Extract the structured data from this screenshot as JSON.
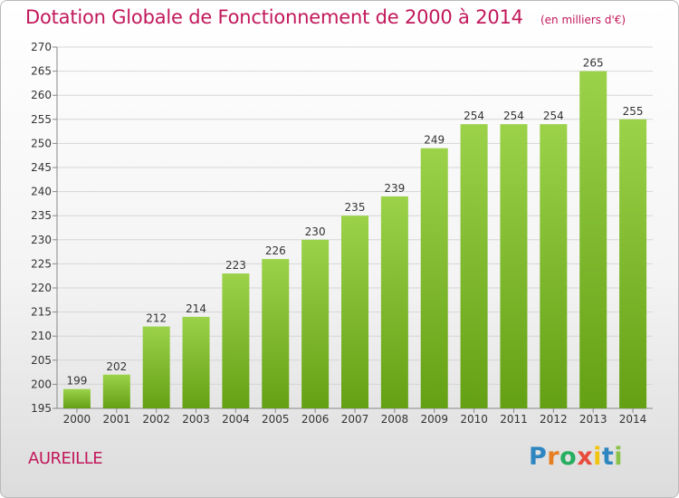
{
  "header": {
    "title": "Dotation Globale de Fonctionnement de 2000 à 2014",
    "unit": "(en milliers d'€)"
  },
  "commune": "AUREILLE",
  "brand": {
    "letters": [
      "P",
      "r",
      "o",
      "x",
      "i",
      "t",
      "i"
    ],
    "colors": [
      "#2e86c1",
      "#e67e22",
      "#27ae60",
      "#e74c3c",
      "#f1c40f",
      "#2e86c1",
      "#8bc34a"
    ]
  },
  "colors": {
    "bar_top": "#9bd249",
    "bar_bottom": "#64a014",
    "title": "#c2185b"
  },
  "chart_data": {
    "type": "bar",
    "title": "Dotation Globale de Fonctionnement de 2000 à 2014",
    "xlabel": "",
    "ylabel": "",
    "categories": [
      "2000",
      "2001",
      "2002",
      "2003",
      "2004",
      "2005",
      "2006",
      "2007",
      "2008",
      "2009",
      "2010",
      "2011",
      "2012",
      "2013",
      "2014"
    ],
    "values": [
      199,
      202,
      212,
      214,
      223,
      226,
      230,
      235,
      239,
      249,
      254,
      254,
      254,
      265,
      255
    ],
    "ylim": [
      195,
      270
    ],
    "yticks": [
      195,
      200,
      205,
      210,
      215,
      220,
      225,
      230,
      235,
      240,
      245,
      250,
      255,
      260,
      265,
      270
    ],
    "grid": true
  }
}
